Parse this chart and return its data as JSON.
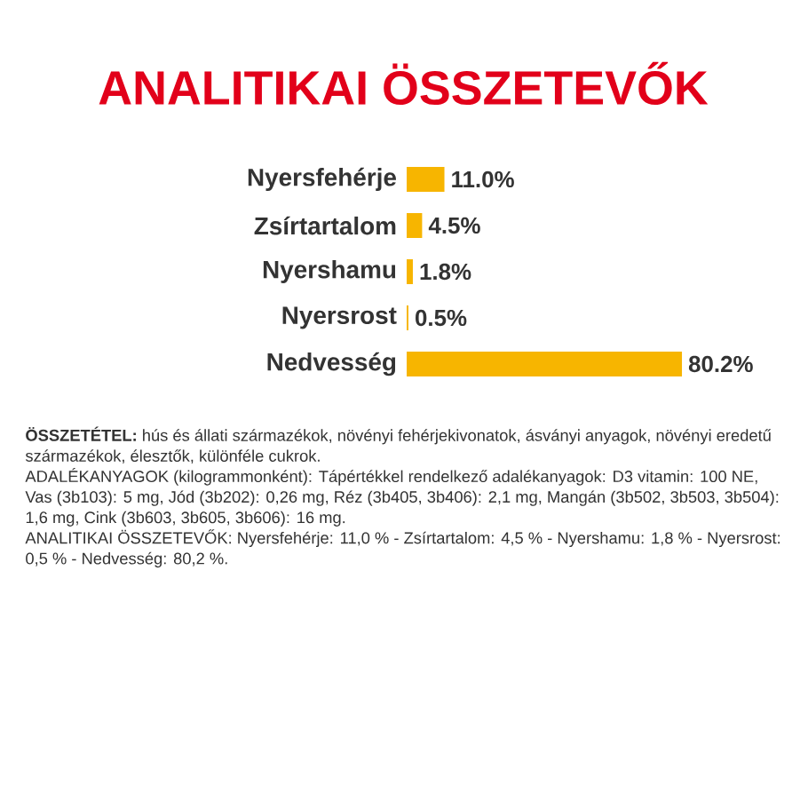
{
  "chart_data": {
    "type": "bar",
    "orientation": "horizontal",
    "title": "ANALITIKAI ÖSSZETEVŐK",
    "categories": [
      "Nyersfehérje",
      "Zsírtartalom",
      "Nyershamu",
      "Nyersrost",
      "Nedvesség"
    ],
    "values": [
      11.0,
      4.5,
      1.8,
      0.5,
      80.2
    ],
    "value_labels": [
      "11.0%",
      "4.5%",
      "1.8%",
      "0.5%",
      "80.2%"
    ],
    "color": "#f7b500",
    "annotations": [
      "**ÖSSZETÉTEL:** hús és állati származékok, növényi fehérjekivonatok, ásványi anyagok, növényi eredetű származékok, élesztők, különféle cukrok.",
      "ADALÉKANYAGOK (kilogrammonként): Tápértékkel rendelkező adalékanyagok: D3 vitamin: 100 NE, Vas (3b103): 5 mg, Jód (3b202): 0,26 mg, Réz (3b405, 3b406): 2,1 mg, Mangán (3b502, 3b503, 3b504): 1,6 mg, Cink (3b603, 3b605, 3b606): 16 mg.",
      "ANALITIKAI ÖSSZETEVŐK: Nyersfehérje: 11,0 % - Zsírtartalom: 4,5 % - Nyershamu: 1,8 % - Nyersrost: 0,5 % - Nedvesség: 80,2 %."
    ]
  }
}
